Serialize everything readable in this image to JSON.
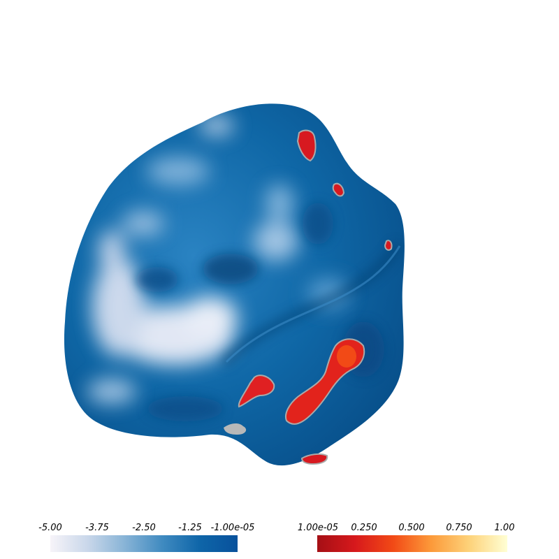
{
  "colors": {
    "surface_blue": "#0f67a6",
    "surface_deep": "#09558f",
    "highlight_pale": "#e8eaf6",
    "positive_red": "#d71920",
    "null_gray": "#b8b8b8",
    "background": "#ffffff"
  },
  "scalar_bars": {
    "negative": {
      "labels": [
        "-5.00",
        "-3.75",
        "-2.50",
        "-1.25",
        "-1.00e-05"
      ],
      "range": [
        -5.0,
        -1e-05
      ],
      "colormap": "white-to-blue"
    },
    "positive": {
      "labels": [
        "1.00e-05",
        "0.250",
        "0.500",
        "0.750",
        "1.00"
      ],
      "range": [
        1e-05,
        1.0
      ],
      "colormap": "red-to-yellow"
    }
  }
}
